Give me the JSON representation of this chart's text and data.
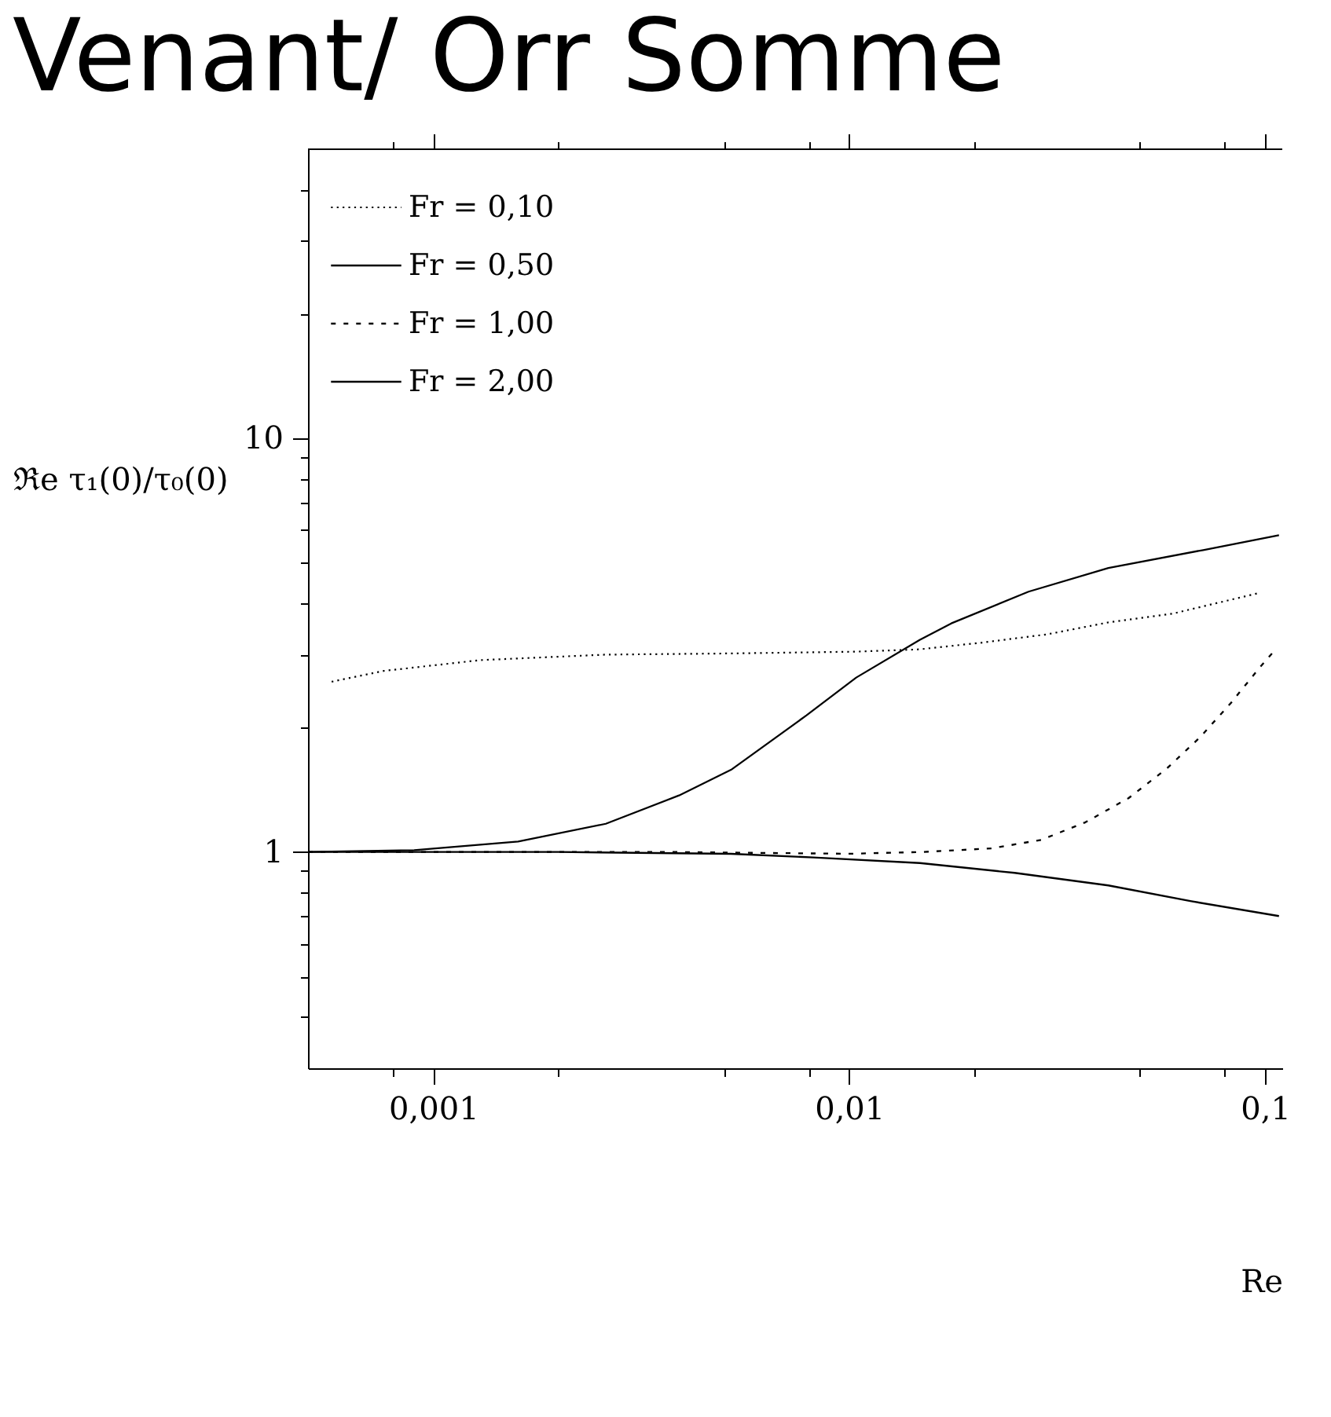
{
  "chart_data": {
    "type": "line",
    "title": "Venant/ Orr Somme",
    "xlabel": "Re",
    "ylabel": "ℜe τ₁(0)/τ₀(0)",
    "log": "xy",
    "grid": false,
    "legend": "top left",
    "xlim": [
      0.0005,
      0.11
    ],
    "ylim": [
      0.3,
      50
    ],
    "xticks": [
      {
        "value": 0.0008,
        "label": null
      },
      {
        "value": 0.001,
        "label": "0,001"
      },
      {
        "value": 0.002,
        "label": null
      },
      {
        "value": 0.005,
        "label": null
      },
      {
        "value": 0.008,
        "label": null
      },
      {
        "value": 0.01,
        "label": "0,01"
      },
      {
        "value": 0.02,
        "label": null
      },
      {
        "value": 0.05,
        "label": null
      },
      {
        "value": 0.08,
        "label": null
      },
      {
        "value": 0.1,
        "label": "0,1"
      }
    ],
    "yticks": [
      {
        "value": 0.4,
        "label": null
      },
      {
        "value": 0.5,
        "label": null
      },
      {
        "value": 0.6,
        "label": null
      },
      {
        "value": 0.7,
        "label": null
      },
      {
        "value": 0.8,
        "label": null
      },
      {
        "value": 0.9,
        "label": null
      },
      1,
      {
        "value": 2,
        "label": null
      },
      {
        "value": 3,
        "label": null
      },
      {
        "value": 4,
        "label": null
      },
      {
        "value": 5,
        "label": null
      },
      {
        "value": 6,
        "label": null
      },
      {
        "value": 7,
        "label": null
      },
      {
        "value": 8,
        "label": null
      },
      {
        "value": 9,
        "label": null
      },
      10,
      {
        "value": 20,
        "label": null
      },
      {
        "value": 30,
        "label": null
      },
      {
        "value": 40,
        "label": null
      }
    ],
    "series": [
      {
        "name": "Fr = 0,10",
        "color": "#000000",
        "line_style": "dotted",
        "x": [
          0.00057,
          0.00076,
          0.0013,
          0.0026,
          0.0052,
          0.0104,
          0.0148,
          0.021,
          0.03,
          0.042,
          0.06,
          0.096
        ],
        "values": [
          2.58,
          2.74,
          2.91,
          3.0,
          3.02,
          3.05,
          3.09,
          3.21,
          3.36,
          3.59,
          3.77,
          4.22
        ]
      },
      {
        "name": "Fr = 0,50",
        "color": "#000000",
        "line_style": "solid",
        "x": [
          0.0005,
          0.0009,
          0.0016,
          0.0026,
          0.0039,
          0.0052,
          0.0079,
          0.0104,
          0.0148,
          0.0176,
          0.027,
          0.042,
          0.071,
          0.108
        ],
        "values": [
          1.0,
          1.01,
          1.06,
          1.17,
          1.37,
          1.58,
          2.14,
          2.64,
          3.26,
          3.57,
          4.26,
          4.86,
          5.37,
          5.83
        ]
      },
      {
        "name": "Fr = 1,00",
        "color": "#000000",
        "line_style": "dotted",
        "x": [
          0.0005,
          0.0037,
          0.01,
          0.015,
          0.022,
          0.029,
          0.037,
          0.047,
          0.058,
          0.07,
          0.083,
          0.097,
          0.106
        ],
        "values": [
          1.0,
          1.0,
          0.99,
          1.0,
          1.02,
          1.07,
          1.18,
          1.35,
          1.59,
          1.9,
          2.3,
          2.79,
          3.09
        ]
      },
      {
        "name": "Fr = 2,00",
        "color": "#000000",
        "line_style": "solid",
        "x": [
          0.0005,
          0.002,
          0.0052,
          0.0082,
          0.0148,
          0.025,
          0.042,
          0.0665,
          0.108
        ],
        "values": [
          1.0,
          1.0,
          0.99,
          0.97,
          0.94,
          0.89,
          0.83,
          0.76,
          0.7
        ]
      }
    ]
  }
}
